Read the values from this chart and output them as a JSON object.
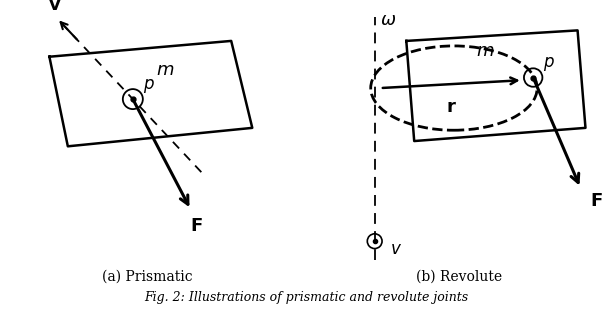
{
  "fig_width": 6.12,
  "fig_height": 3.1,
  "dpi": 100,
  "caption": "Fig. 2: Illustrations of prismatic and revolute joints",
  "label_a": "(a) Prismatic",
  "label_b": "(b) Revolute",
  "bg_color": "#ffffff"
}
